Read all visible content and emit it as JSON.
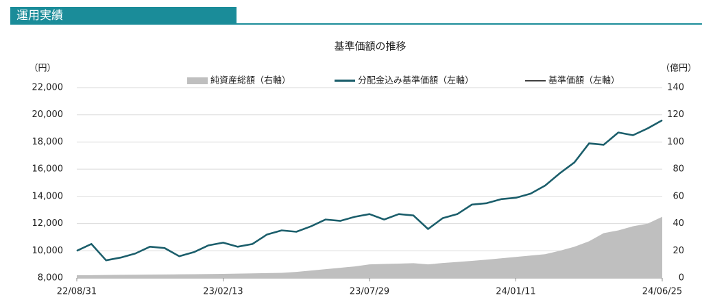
{
  "section_title": "運用実績",
  "chart_data": {
    "type": "line",
    "title": "基準価額の推移",
    "y_label": "（円）",
    "y2_label": "（億円）",
    "x": [
      "22/08/31",
      null,
      null,
      null,
      null,
      null,
      null,
      null,
      null,
      null,
      "23/02/13",
      null,
      null,
      null,
      null,
      null,
      null,
      null,
      null,
      null,
      "23/07/29",
      null,
      null,
      null,
      null,
      null,
      null,
      null,
      null,
      null,
      "24/01/11",
      null,
      null,
      null,
      null,
      null,
      null,
      null,
      null,
      null,
      "24/06/25"
    ],
    "series": [
      {
        "name": "純資産総額（右軸）",
        "color": "#bfbfbf",
        "axis": "y2",
        "kind": "area",
        "values": [
          2,
          2.1,
          2.2,
          2.3,
          2.4,
          2.5,
          2.6,
          2.7,
          2.8,
          2.9,
          3,
          3.2,
          3.4,
          3.6,
          3.8,
          4.5,
          5.5,
          6.5,
          7.5,
          8.5,
          10,
          10.3,
          10.6,
          10.9,
          10,
          11,
          11.8,
          12.6,
          13.5,
          14.5,
          15.5,
          16.5,
          17.5,
          20,
          23,
          27,
          33,
          35,
          38,
          40,
          45
        ]
      },
      {
        "name": "分配金込み基準価額（左軸）",
        "color": "#1b5e6b",
        "kind": "line",
        "width": 2.6,
        "values": [
          10000,
          10500,
          9300,
          9500,
          9800,
          10300,
          10200,
          9600,
          9900,
          10400,
          10600,
          10300,
          10500,
          11200,
          11500,
          11400,
          11800,
          12300,
          12200,
          12500,
          12700,
          12300,
          12700,
          12600,
          11600,
          12400,
          12700,
          13400,
          13500,
          13800,
          13900,
          14200,
          14800,
          15700,
          16500,
          17900,
          17800,
          18700,
          18500,
          19000,
          19600
        ]
      },
      {
        "name": "基準価額（左軸）",
        "color": "#222222",
        "kind": "line",
        "width": 1.2,
        "values": [
          10000,
          10500,
          9300,
          9500,
          9800,
          10300,
          10200,
          9600,
          9900,
          10400,
          10600,
          10300,
          10500,
          11200,
          11500,
          11400,
          11800,
          12300,
          12200,
          12500,
          12700,
          12300,
          12700,
          12600,
          11600,
          12400,
          12700,
          13400,
          13500,
          13800,
          13900,
          14200,
          14800,
          15700,
          16500,
          17900,
          17800,
          18700,
          18500,
          19000,
          19600
        ]
      }
    ],
    "ylim": [
      8000,
      22000
    ],
    "yticks": [
      {
        "value": 8000,
        "label": "8,000"
      },
      {
        "value": 10000,
        "label": "10,000"
      },
      {
        "value": 12000,
        "label": "12,000"
      },
      {
        "value": 14000,
        "label": "14,000"
      },
      {
        "value": 16000,
        "label": "16,000"
      },
      {
        "value": 18000,
        "label": "18,000"
      },
      {
        "value": 20000,
        "label": "20,000"
      },
      {
        "value": 22000,
        "label": "22,000"
      }
    ],
    "y2lim": [
      0,
      140
    ],
    "y2ticks": [
      0,
      20,
      40,
      60,
      80,
      100,
      120,
      140
    ],
    "grid": true
  }
}
